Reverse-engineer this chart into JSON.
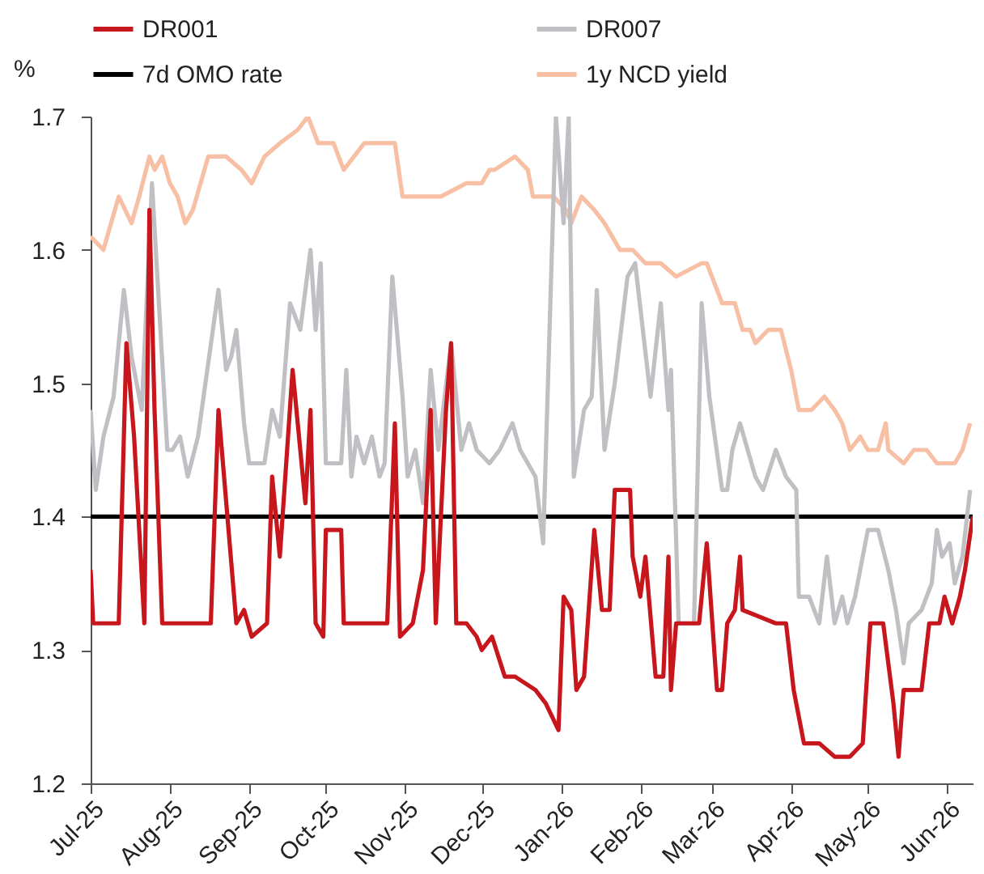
{
  "chart_data": {
    "type": "line",
    "ylabel": "%",
    "legend": "top",
    "line_style": "solid",
    "xlim": [
      "2025-07-01",
      "2026-06-11"
    ],
    "xticks": [
      {
        "value": "2025-07-01",
        "label": "Jul-25"
      },
      {
        "value": "2025-08-01",
        "label": "Aug-25"
      },
      {
        "value": "2025-09-01",
        "label": "Sep-25"
      },
      {
        "value": "2025-10-01",
        "label": "Oct-25"
      },
      {
        "value": "2025-11-01",
        "label": "Nov-25"
      },
      {
        "value": "2025-12-01",
        "label": "Dec-25"
      },
      {
        "value": "2026-01-01",
        "label": "Jan-26"
      },
      {
        "value": "2026-02-01",
        "label": "Feb-26"
      },
      {
        "value": "2026-03-01",
        "label": "Mar-26"
      },
      {
        "value": "2026-04-01",
        "label": "Apr-26"
      },
      {
        "value": "2026-05-01",
        "label": "May-26"
      },
      {
        "value": "2026-06-01",
        "label": "Jun-26"
      }
    ],
    "ylim": [
      1.2,
      1.7
    ],
    "yticks": [
      1.2,
      1.3,
      1.4,
      1.5,
      1.6,
      1.7
    ],
    "series": [
      {
        "name": "DR001",
        "color": "#c8161d",
        "x": [
          "2025-07-01",
          "2025-07-02",
          "2025-07-12",
          "2025-07-15",
          "2025-07-18",
          "2025-07-22",
          "2025-07-23",
          "2025-07-24",
          "2025-07-26",
          "2025-07-29",
          "2025-08-17",
          "2025-08-20",
          "2025-08-27",
          "2025-08-30",
          "2025-09-02",
          "2025-09-08",
          "2025-09-10",
          "2025-09-13",
          "2025-09-18",
          "2025-09-23",
          "2025-09-25",
          "2025-09-27",
          "2025-09-30",
          "2025-10-01",
          "2025-10-07",
          "2025-10-08",
          "2025-10-25",
          "2025-10-28",
          "2025-10-30",
          "2025-11-04",
          "2025-11-08",
          "2025-11-11",
          "2025-11-13",
          "2025-11-17",
          "2025-11-19",
          "2025-11-21",
          "2025-11-25",
          "2025-11-29",
          "2025-12-01",
          "2025-12-05",
          "2025-12-10",
          "2025-12-14",
          "2025-12-22",
          "2025-12-26",
          "2025-12-31",
          "2026-01-02",
          "2026-01-05",
          "2026-01-07",
          "2026-01-10",
          "2026-01-14",
          "2026-01-17",
          "2026-01-20",
          "2026-01-22",
          "2026-01-28",
          "2026-01-29",
          "2026-02-01",
          "2026-02-03",
          "2026-02-07",
          "2026-02-10",
          "2026-02-12",
          "2026-02-13",
          "2026-02-15",
          "2026-02-24",
          "2026-02-27",
          "2026-03-03",
          "2026-03-05",
          "2026-03-07",
          "2026-03-10",
          "2026-03-12",
          "2026-03-13",
          "2026-03-26",
          "2026-03-30",
          "2026-04-02",
          "2026-04-06",
          "2026-04-12",
          "2026-04-18",
          "2026-04-24",
          "2026-04-29",
          "2026-05-02",
          "2026-05-07",
          "2026-05-09",
          "2026-05-11",
          "2026-05-13",
          "2026-05-15",
          "2026-05-22",
          "2026-05-25",
          "2026-05-29",
          "2026-05-31",
          "2026-06-03",
          "2026-06-06",
          "2026-06-08",
          "2026-06-11"
        ],
        "values": [
          1.36,
          1.32,
          1.32,
          1.53,
          1.46,
          1.32,
          1.47,
          1.63,
          1.48,
          1.32,
          1.32,
          1.48,
          1.32,
          1.33,
          1.31,
          1.32,
          1.43,
          1.37,
          1.51,
          1.41,
          1.48,
          1.32,
          1.31,
          1.39,
          1.39,
          1.32,
          1.32,
          1.47,
          1.31,
          1.32,
          1.36,
          1.48,
          1.32,
          1.48,
          1.53,
          1.32,
          1.32,
          1.31,
          1.3,
          1.31,
          1.28,
          1.28,
          1.27,
          1.26,
          1.24,
          1.34,
          1.33,
          1.27,
          1.28,
          1.39,
          1.33,
          1.33,
          1.42,
          1.42,
          1.37,
          1.34,
          1.37,
          1.28,
          1.28,
          1.37,
          1.27,
          1.32,
          1.32,
          1.38,
          1.27,
          1.27,
          1.32,
          1.33,
          1.37,
          1.33,
          1.32,
          1.32,
          1.27,
          1.23,
          1.23,
          1.22,
          1.22,
          1.23,
          1.32,
          1.32,
          1.29,
          1.26,
          1.22,
          1.27,
          1.27,
          1.32,
          1.32,
          1.34,
          1.32,
          1.34,
          1.36,
          1.4
        ]
      },
      {
        "name": "DR007",
        "color": "#c0c0c4",
        "x": [
          "2025-07-01",
          "2025-07-03",
          "2025-07-06",
          "2025-07-10",
          "2025-07-14",
          "2025-07-17",
          "2025-07-21",
          "2025-07-25",
          "2025-07-28",
          "2025-07-31",
          "2025-08-02",
          "2025-08-05",
          "2025-08-08",
          "2025-08-12",
          "2025-08-20",
          "2025-08-23",
          "2025-08-25",
          "2025-08-27",
          "2025-08-30",
          "2025-09-01",
          "2025-09-07",
          "2025-09-10",
          "2025-09-13",
          "2025-09-17",
          "2025-09-21",
          "2025-09-25",
          "2025-09-27",
          "2025-09-29",
          "2025-10-01",
          "2025-10-07",
          "2025-10-09",
          "2025-10-11",
          "2025-10-13",
          "2025-10-16",
          "2025-10-19",
          "2025-10-22",
          "2025-10-24",
          "2025-10-27",
          "2025-10-31",
          "2025-11-02",
          "2025-11-05",
          "2025-11-08",
          "2025-11-11",
          "2025-11-14",
          "2025-11-19",
          "2025-11-23",
          "2025-11-26",
          "2025-11-29",
          "2025-12-04",
          "2025-12-08",
          "2025-12-13",
          "2025-12-16",
          "2025-12-22",
          "2025-12-25",
          "2025-12-30",
          "2026-01-02",
          "2026-01-04",
          "2026-01-06",
          "2026-01-10",
          "2026-01-13",
          "2026-01-15",
          "2026-01-18",
          "2026-01-22",
          "2026-01-27",
          "2026-01-30",
          "2026-02-02",
          "2026-02-05",
          "2026-02-09",
          "2026-02-12",
          "2026-02-13",
          "2026-02-16",
          "2026-02-22",
          "2026-02-25",
          "2026-02-28",
          "2026-03-05",
          "2026-03-07",
          "2026-03-09",
          "2026-03-12",
          "2026-03-15",
          "2026-03-18",
          "2026-03-21",
          "2026-03-26",
          "2026-03-30",
          "2026-04-03",
          "2026-04-04",
          "2026-04-08",
          "2026-04-12",
          "2026-04-15",
          "2026-04-18",
          "2026-04-21",
          "2026-04-23",
          "2026-04-26",
          "2026-05-01",
          "2026-05-05",
          "2026-05-09",
          "2026-05-12",
          "2026-05-15",
          "2026-05-17",
          "2026-05-22",
          "2026-05-26",
          "2026-05-28",
          "2026-05-30",
          "2026-06-02",
          "2026-06-04",
          "2026-06-07",
          "2026-06-10"
        ],
        "values": [
          1.48,
          1.42,
          1.46,
          1.49,
          1.57,
          1.52,
          1.48,
          1.65,
          1.55,
          1.45,
          1.45,
          1.46,
          1.43,
          1.46,
          1.57,
          1.51,
          1.52,
          1.54,
          1.47,
          1.44,
          1.44,
          1.48,
          1.46,
          1.56,
          1.54,
          1.6,
          1.54,
          1.59,
          1.44,
          1.44,
          1.51,
          1.43,
          1.46,
          1.44,
          1.46,
          1.43,
          1.44,
          1.58,
          1.49,
          1.43,
          1.45,
          1.41,
          1.51,
          1.45,
          1.53,
          1.45,
          1.47,
          1.45,
          1.44,
          1.45,
          1.47,
          1.45,
          1.43,
          1.38,
          1.7,
          1.62,
          1.7,
          1.43,
          1.48,
          1.49,
          1.57,
          1.45,
          1.5,
          1.58,
          1.59,
          1.54,
          1.49,
          1.56,
          1.48,
          1.51,
          1.32,
          1.32,
          1.56,
          1.49,
          1.42,
          1.42,
          1.45,
          1.47,
          1.45,
          1.43,
          1.42,
          1.45,
          1.43,
          1.42,
          1.34,
          1.34,
          1.32,
          1.37,
          1.32,
          1.34,
          1.32,
          1.34,
          1.39,
          1.39,
          1.36,
          1.33,
          1.29,
          1.32,
          1.33,
          1.35,
          1.39,
          1.37,
          1.38,
          1.35,
          1.37,
          1.42
        ]
      },
      {
        "name": "7d OMO rate",
        "color": "#000000",
        "x": [
          "2025-07-01",
          "2026-06-11"
        ],
        "values": [
          1.4,
          1.4
        ]
      },
      {
        "name": "1y NCD yield",
        "color": "#f7bfa3",
        "x": [
          "2025-07-01",
          "2025-07-06",
          "2025-07-12",
          "2025-07-17",
          "2025-07-20",
          "2025-07-24",
          "2025-07-26",
          "2025-07-29",
          "2025-08-01",
          "2025-08-04",
          "2025-08-07",
          "2025-08-10",
          "2025-08-16",
          "2025-08-19",
          "2025-08-23",
          "2025-08-29",
          "2025-09-02",
          "2025-09-07",
          "2025-09-13",
          "2025-09-20",
          "2025-09-24",
          "2025-09-28",
          "2025-10-04",
          "2025-10-08",
          "2025-10-16",
          "2025-10-22",
          "2025-10-28",
          "2025-10-31",
          "2025-11-04",
          "2025-11-12",
          "2025-11-15",
          "2025-11-25",
          "2025-12-01",
          "2025-12-04",
          "2025-12-06",
          "2025-12-14",
          "2025-12-19",
          "2025-12-21",
          "2025-12-29",
          "2026-01-03",
          "2026-01-05",
          "2026-01-09",
          "2026-01-14",
          "2026-01-18",
          "2026-01-24",
          "2026-01-29",
          "2026-02-03",
          "2026-02-09",
          "2026-02-15",
          "2026-02-25",
          "2026-02-27",
          "2026-03-05",
          "2026-03-10",
          "2026-03-13",
          "2026-03-16",
          "2026-03-18",
          "2026-03-23",
          "2026-03-28",
          "2026-04-01",
          "2026-04-04",
          "2026-04-09",
          "2026-04-14",
          "2026-04-18",
          "2026-04-21",
          "2026-04-24",
          "2026-04-28",
          "2026-05-01",
          "2026-05-05",
          "2026-05-08",
          "2026-05-09",
          "2026-05-15",
          "2026-05-19",
          "2026-05-24",
          "2026-05-28",
          "2026-05-31",
          "2026-06-04",
          "2026-06-07",
          "2026-06-10"
        ],
        "values": [
          1.61,
          1.6,
          1.64,
          1.62,
          1.64,
          1.67,
          1.66,
          1.67,
          1.65,
          1.64,
          1.62,
          1.63,
          1.67,
          1.67,
          1.67,
          1.66,
          1.65,
          1.67,
          1.68,
          1.69,
          1.7,
          1.68,
          1.68,
          1.66,
          1.68,
          1.68,
          1.68,
          1.64,
          1.64,
          1.64,
          1.64,
          1.65,
          1.65,
          1.66,
          1.66,
          1.67,
          1.66,
          1.64,
          1.64,
          1.63,
          1.62,
          1.64,
          1.63,
          1.62,
          1.6,
          1.6,
          1.59,
          1.59,
          1.58,
          1.59,
          1.59,
          1.56,
          1.56,
          1.54,
          1.54,
          1.53,
          1.54,
          1.54,
          1.51,
          1.48,
          1.48,
          1.49,
          1.48,
          1.47,
          1.45,
          1.46,
          1.45,
          1.45,
          1.47,
          1.45,
          1.44,
          1.45,
          1.45,
          1.44,
          1.44,
          1.44,
          1.45,
          1.47
        ]
      }
    ]
  }
}
